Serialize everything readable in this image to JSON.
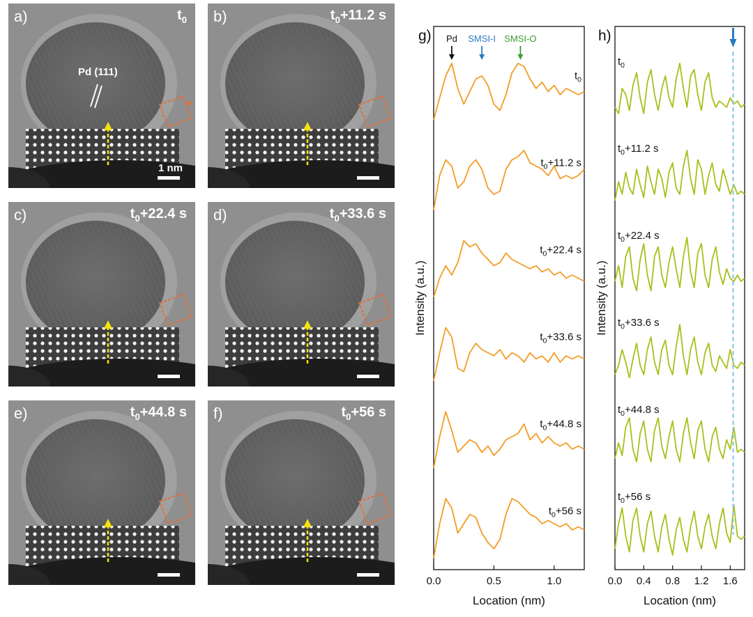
{
  "panels": [
    {
      "label": "a)",
      "time_base": "t",
      "time_sub": "0",
      "time_rest": ""
    },
    {
      "label": "b)",
      "time_base": "t",
      "time_sub": "0",
      "time_rest": "+11.2 s"
    },
    {
      "label": "c)",
      "time_base": "t",
      "time_sub": "0",
      "time_rest": "+22.4 s"
    },
    {
      "label": "d)",
      "time_base": "t",
      "time_sub": "0",
      "time_rest": "+33.6 s"
    },
    {
      "label": "e)",
      "time_base": "t",
      "time_sub": "0",
      "time_rest": "+44.8 s"
    },
    {
      "label": "f)",
      "time_base": "t",
      "time_sub": "0",
      "time_rest": "+56 s"
    }
  ],
  "panel_a": {
    "pd_label": "Pd (111)",
    "scale_text": "1 nm"
  },
  "colors": {
    "orange": "#f39c24",
    "green": "#a9bf1a",
    "blue_arrow": "#2a7ac2",
    "green_arrow": "#3aa02d",
    "yellow": "#f4e20e",
    "box": "#e0703a",
    "dash": "#7ec7e6"
  },
  "chart_data": [
    {
      "type": "line",
      "panel_label": "g)",
      "xlabel": "Location (nm)",
      "ylabel": "Intensity (a.u.)",
      "xlim": [
        0.0,
        1.25
      ],
      "xticks": [
        "0.0",
        "0.5",
        "1.0"
      ],
      "xtick_values": [
        0.0,
        0.5,
        1.0
      ],
      "annotations": [
        {
          "text": "Pd",
          "x": 0.15,
          "color": "#111111"
        },
        {
          "text": "SMSI-I",
          "x": 0.4,
          "color": "#2a7ac2"
        },
        {
          "text": "SMSI-O",
          "x": 0.72,
          "color": "#3aa02d"
        }
      ],
      "series": [
        {
          "name_base": "t",
          "name_sub": "0",
          "name_rest": "",
          "x": [
            0.0,
            0.05,
            0.1,
            0.15,
            0.2,
            0.25,
            0.3,
            0.35,
            0.4,
            0.45,
            0.5,
            0.55,
            0.6,
            0.65,
            0.7,
            0.75,
            0.8,
            0.85,
            0.9,
            0.95,
            1.0,
            1.05,
            1.1,
            1.15,
            1.2,
            1.25
          ],
          "y": [
            0.1,
            0.45,
            0.8,
            1.0,
            0.6,
            0.35,
            0.55,
            0.75,
            0.8,
            0.65,
            0.35,
            0.25,
            0.5,
            0.85,
            1.0,
            0.95,
            0.75,
            0.6,
            0.7,
            0.55,
            0.65,
            0.5,
            0.6,
            0.55,
            0.5,
            0.55
          ]
        },
        {
          "name_base": "t",
          "name_sub": "0",
          "name_rest": "+11.2 s",
          "x": [
            0.0,
            0.05,
            0.1,
            0.15,
            0.2,
            0.25,
            0.3,
            0.35,
            0.4,
            0.45,
            0.5,
            0.55,
            0.6,
            0.65,
            0.7,
            0.75,
            0.8,
            0.85,
            0.9,
            0.95,
            1.0,
            1.05,
            1.1,
            1.15,
            1.2,
            1.25
          ],
          "y": [
            0.05,
            0.6,
            0.85,
            0.75,
            0.4,
            0.5,
            0.75,
            0.85,
            0.7,
            0.4,
            0.3,
            0.35,
            0.7,
            0.85,
            0.9,
            1.0,
            0.8,
            0.75,
            0.7,
            0.6,
            0.75,
            0.55,
            0.6,
            0.55,
            0.6,
            0.7
          ]
        },
        {
          "name_base": "t",
          "name_sub": "0",
          "name_rest": "+22.4 s",
          "x": [
            0.0,
            0.05,
            0.1,
            0.15,
            0.2,
            0.25,
            0.3,
            0.35,
            0.4,
            0.45,
            0.5,
            0.55,
            0.6,
            0.65,
            0.7,
            0.75,
            0.8,
            0.85,
            0.9,
            0.95,
            1.0,
            1.05,
            1.1,
            1.15,
            1.2,
            1.25
          ],
          "y": [
            0.05,
            0.35,
            0.55,
            0.4,
            0.6,
            0.95,
            0.85,
            0.9,
            0.75,
            0.65,
            0.55,
            0.6,
            0.75,
            0.65,
            0.6,
            0.55,
            0.5,
            0.55,
            0.45,
            0.5,
            0.4,
            0.45,
            0.35,
            0.4,
            0.35,
            0.3
          ]
        },
        {
          "name_base": "t",
          "name_sub": "0",
          "name_rest": "+33.6 s",
          "x": [
            0.0,
            0.05,
            0.1,
            0.15,
            0.2,
            0.25,
            0.3,
            0.35,
            0.4,
            0.45,
            0.5,
            0.55,
            0.6,
            0.65,
            0.7,
            0.75,
            0.8,
            0.85,
            0.9,
            0.95,
            1.0,
            1.05,
            1.1,
            1.15,
            1.2,
            1.25
          ],
          "y": [
            0.1,
            0.55,
            0.95,
            0.8,
            0.3,
            0.25,
            0.55,
            0.7,
            0.6,
            0.55,
            0.5,
            0.6,
            0.45,
            0.55,
            0.5,
            0.4,
            0.55,
            0.45,
            0.5,
            0.4,
            0.55,
            0.4,
            0.5,
            0.45,
            0.5,
            0.45
          ]
        },
        {
          "name_base": "t",
          "name_sub": "0",
          "name_rest": "+44.8 s",
          "x": [
            0.0,
            0.05,
            0.1,
            0.15,
            0.2,
            0.25,
            0.3,
            0.35,
            0.4,
            0.45,
            0.5,
            0.55,
            0.6,
            0.65,
            0.7,
            0.75,
            0.8,
            0.85,
            0.9,
            0.95,
            1.0,
            1.05,
            1.1,
            1.15,
            1.2,
            1.25
          ],
          "y": [
            0.1,
            0.6,
            1.0,
            0.7,
            0.35,
            0.45,
            0.55,
            0.5,
            0.35,
            0.45,
            0.3,
            0.4,
            0.55,
            0.6,
            0.65,
            0.8,
            0.55,
            0.65,
            0.5,
            0.6,
            0.5,
            0.45,
            0.5,
            0.4,
            0.45,
            0.4
          ]
        },
        {
          "name_base": "t",
          "name_sub": "0",
          "name_rest": "+56 s",
          "x": [
            0.0,
            0.05,
            0.1,
            0.15,
            0.2,
            0.25,
            0.3,
            0.35,
            0.4,
            0.45,
            0.5,
            0.55,
            0.6,
            0.65,
            0.7,
            0.75,
            0.8,
            0.85,
            0.9,
            0.95,
            1.0,
            1.05,
            1.1,
            1.15,
            1.2,
            1.25
          ],
          "y": [
            0.05,
            0.6,
            1.0,
            0.85,
            0.45,
            0.6,
            0.75,
            0.7,
            0.45,
            0.3,
            0.2,
            0.35,
            0.75,
            1.0,
            0.95,
            0.85,
            0.75,
            0.7,
            0.6,
            0.65,
            0.6,
            0.55,
            0.6,
            0.5,
            0.55,
            0.5
          ]
        }
      ]
    },
    {
      "type": "line",
      "panel_label": "h)",
      "xlabel": "Location (nm)",
      "ylabel": "Intensity (a.u.)",
      "xlim": [
        0.0,
        1.8
      ],
      "xticks": [
        "0.0",
        "0.4",
        "0.8",
        "1.2",
        "1.6"
      ],
      "xtick_values": [
        0.0,
        0.4,
        0.8,
        1.2,
        1.6
      ],
      "dashed_x": 1.64,
      "series": [
        {
          "name_base": "t",
          "name_sub": "0",
          "name_rest": "",
          "x": [
            0.0,
            0.05,
            0.1,
            0.15,
            0.2,
            0.25,
            0.3,
            0.35,
            0.4,
            0.45,
            0.5,
            0.55,
            0.6,
            0.65,
            0.7,
            0.75,
            0.8,
            0.85,
            0.9,
            0.95,
            1.0,
            1.05,
            1.1,
            1.15,
            1.2,
            1.25,
            1.3,
            1.35,
            1.4,
            1.45,
            1.5,
            1.55,
            1.6,
            1.65,
            1.7,
            1.75,
            1.8
          ],
          "y": [
            0.3,
            0.2,
            0.6,
            0.5,
            0.25,
            0.65,
            0.85,
            0.45,
            0.2,
            0.7,
            0.9,
            0.5,
            0.25,
            0.6,
            0.8,
            0.45,
            0.3,
            0.75,
            1.0,
            0.6,
            0.3,
            0.8,
            0.9,
            0.5,
            0.25,
            0.7,
            0.85,
            0.45,
            0.3,
            0.4,
            0.35,
            0.3,
            0.45,
            0.35,
            0.4,
            0.3,
            0.35
          ]
        },
        {
          "name_base": "t",
          "name_sub": "0",
          "name_rest": "+11.2 s",
          "x": [
            0.0,
            0.05,
            0.1,
            0.15,
            0.2,
            0.25,
            0.3,
            0.35,
            0.4,
            0.45,
            0.5,
            0.55,
            0.6,
            0.65,
            0.7,
            0.75,
            0.8,
            0.85,
            0.9,
            0.95,
            1.0,
            1.05,
            1.1,
            1.15,
            1.2,
            1.25,
            1.3,
            1.35,
            1.4,
            1.45,
            1.5,
            1.55,
            1.6,
            1.65,
            1.7,
            1.75,
            1.8
          ],
          "y": [
            0.2,
            0.5,
            0.3,
            0.65,
            0.4,
            0.3,
            0.7,
            0.45,
            0.25,
            0.75,
            0.5,
            0.3,
            0.7,
            0.55,
            0.25,
            0.65,
            0.8,
            0.4,
            0.3,
            0.75,
            1.0,
            0.55,
            0.3,
            0.85,
            0.7,
            0.3,
            0.6,
            0.8,
            0.45,
            0.35,
            0.7,
            0.5,
            0.3,
            0.45,
            0.3,
            0.35,
            0.3
          ]
        },
        {
          "name_base": "t",
          "name_sub": "0",
          "name_rest": "+22.4 s",
          "x": [
            0.0,
            0.05,
            0.1,
            0.15,
            0.2,
            0.25,
            0.3,
            0.35,
            0.4,
            0.45,
            0.5,
            0.55,
            0.6,
            0.65,
            0.7,
            0.75,
            0.8,
            0.85,
            0.9,
            0.95,
            1.0,
            1.05,
            1.1,
            1.15,
            1.2,
            1.25,
            1.3,
            1.35,
            1.4,
            1.45,
            1.5,
            1.55,
            1.6,
            1.65,
            1.7,
            1.75,
            1.8
          ],
          "y": [
            0.3,
            0.55,
            0.2,
            0.7,
            0.85,
            0.35,
            0.15,
            0.65,
            0.9,
            0.4,
            0.15,
            0.7,
            0.85,
            0.4,
            0.2,
            0.6,
            0.85,
            0.5,
            0.2,
            0.7,
            1.0,
            0.45,
            0.2,
            0.75,
            0.9,
            0.4,
            0.2,
            0.65,
            0.85,
            0.45,
            0.25,
            0.5,
            0.35,
            0.3,
            0.4,
            0.3,
            0.35
          ]
        },
        {
          "name_base": "t",
          "name_sub": "0",
          "name_rest": "+33.6 s",
          "x": [
            0.0,
            0.05,
            0.1,
            0.15,
            0.2,
            0.25,
            0.3,
            0.35,
            0.4,
            0.45,
            0.5,
            0.55,
            0.6,
            0.65,
            0.7,
            0.75,
            0.8,
            0.85,
            0.9,
            0.95,
            1.0,
            1.05,
            1.1,
            1.15,
            1.2,
            1.25,
            1.3,
            1.35,
            1.4,
            1.45,
            1.5,
            1.55,
            1.6,
            1.65,
            1.7,
            1.75,
            1.8
          ],
          "y": [
            0.2,
            0.35,
            0.6,
            0.4,
            0.15,
            0.45,
            0.7,
            0.35,
            0.2,
            0.6,
            0.8,
            0.4,
            0.2,
            0.6,
            0.75,
            0.35,
            0.2,
            0.65,
            1.0,
            0.5,
            0.2,
            0.6,
            0.8,
            0.4,
            0.2,
            0.55,
            0.7,
            0.35,
            0.25,
            0.5,
            0.4,
            0.3,
            0.6,
            0.35,
            0.3,
            0.4,
            0.35
          ]
        },
        {
          "name_base": "t",
          "name_sub": "0",
          "name_rest": "+44.8 s",
          "x": [
            0.0,
            0.05,
            0.1,
            0.15,
            0.2,
            0.25,
            0.3,
            0.35,
            0.4,
            0.45,
            0.5,
            0.55,
            0.6,
            0.65,
            0.7,
            0.75,
            0.8,
            0.85,
            0.9,
            0.95,
            1.0,
            1.05,
            1.1,
            1.15,
            1.2,
            1.25,
            1.3,
            1.35,
            1.4,
            1.45,
            1.5,
            1.55,
            1.6,
            1.65,
            1.7,
            1.75,
            1.8
          ],
          "y": [
            0.25,
            0.5,
            0.3,
            0.75,
            0.9,
            0.4,
            0.2,
            0.65,
            0.85,
            0.4,
            0.2,
            0.7,
            0.9,
            0.45,
            0.25,
            0.6,
            0.85,
            0.4,
            0.2,
            0.65,
            0.9,
            0.5,
            0.25,
            0.7,
            0.85,
            0.4,
            0.2,
            0.6,
            0.75,
            0.4,
            0.25,
            0.55,
            0.4,
            0.75,
            0.35,
            0.4,
            0.35
          ]
        },
        {
          "name_base": "t",
          "name_sub": "0",
          "name_rest": "+56 s",
          "x": [
            0.0,
            0.05,
            0.1,
            0.15,
            0.2,
            0.25,
            0.3,
            0.35,
            0.4,
            0.45,
            0.5,
            0.55,
            0.6,
            0.65,
            0.7,
            0.75,
            0.8,
            0.85,
            0.9,
            0.95,
            1.0,
            1.05,
            1.1,
            1.15,
            1.2,
            1.25,
            1.3,
            1.35,
            1.4,
            1.45,
            1.5,
            1.55,
            1.6,
            1.65,
            1.7,
            1.75,
            1.8
          ],
          "y": [
            0.2,
            0.6,
            0.85,
            0.4,
            0.15,
            0.65,
            0.85,
            0.4,
            0.15,
            0.6,
            0.8,
            0.4,
            0.15,
            0.55,
            0.75,
            0.35,
            0.1,
            0.5,
            0.7,
            0.35,
            0.15,
            0.55,
            0.8,
            0.4,
            0.2,
            0.55,
            0.75,
            0.4,
            0.2,
            0.6,
            0.85,
            0.45,
            0.3,
            0.9,
            0.4,
            0.35,
            0.4
          ]
        }
      ]
    }
  ]
}
